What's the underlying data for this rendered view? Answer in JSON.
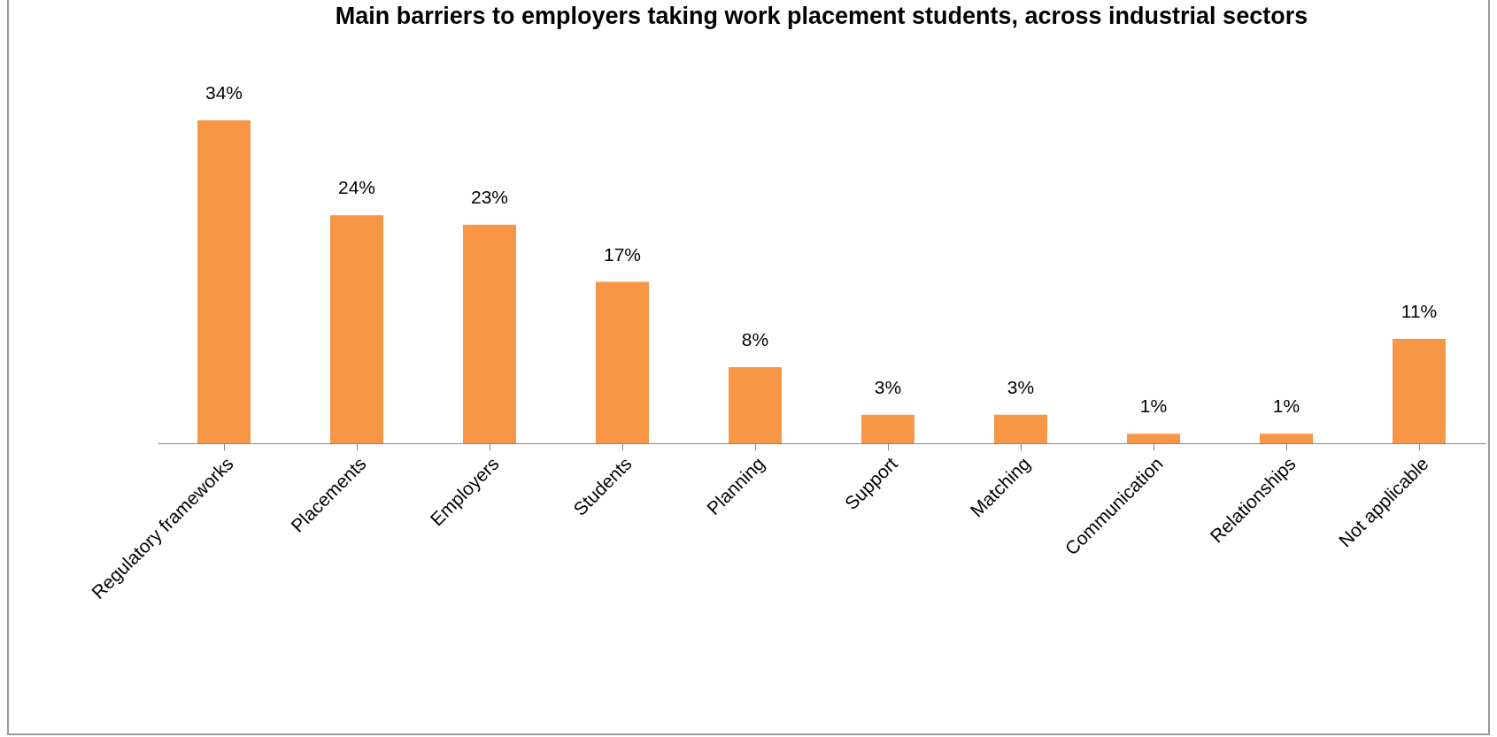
{
  "chart_data": {
    "type": "bar",
    "title": "Main barriers to employers taking work placement students, across industrial sectors",
    "categories": [
      "Regulatory frameworks",
      "Placements",
      "Employers",
      "Students",
      "Planning",
      "Support",
      "Matching",
      "Communication",
      "Relationships",
      "Not applicable"
    ],
    "values": [
      34,
      24,
      23,
      17,
      8,
      3,
      3,
      1,
      1,
      11
    ],
    "value_labels": [
      "34%",
      "24%",
      "23%",
      "17%",
      "8%",
      "3%",
      "3%",
      "1%",
      "1%",
      "11%"
    ],
    "color": "#f79646",
    "tick_labels": "x"
  }
}
